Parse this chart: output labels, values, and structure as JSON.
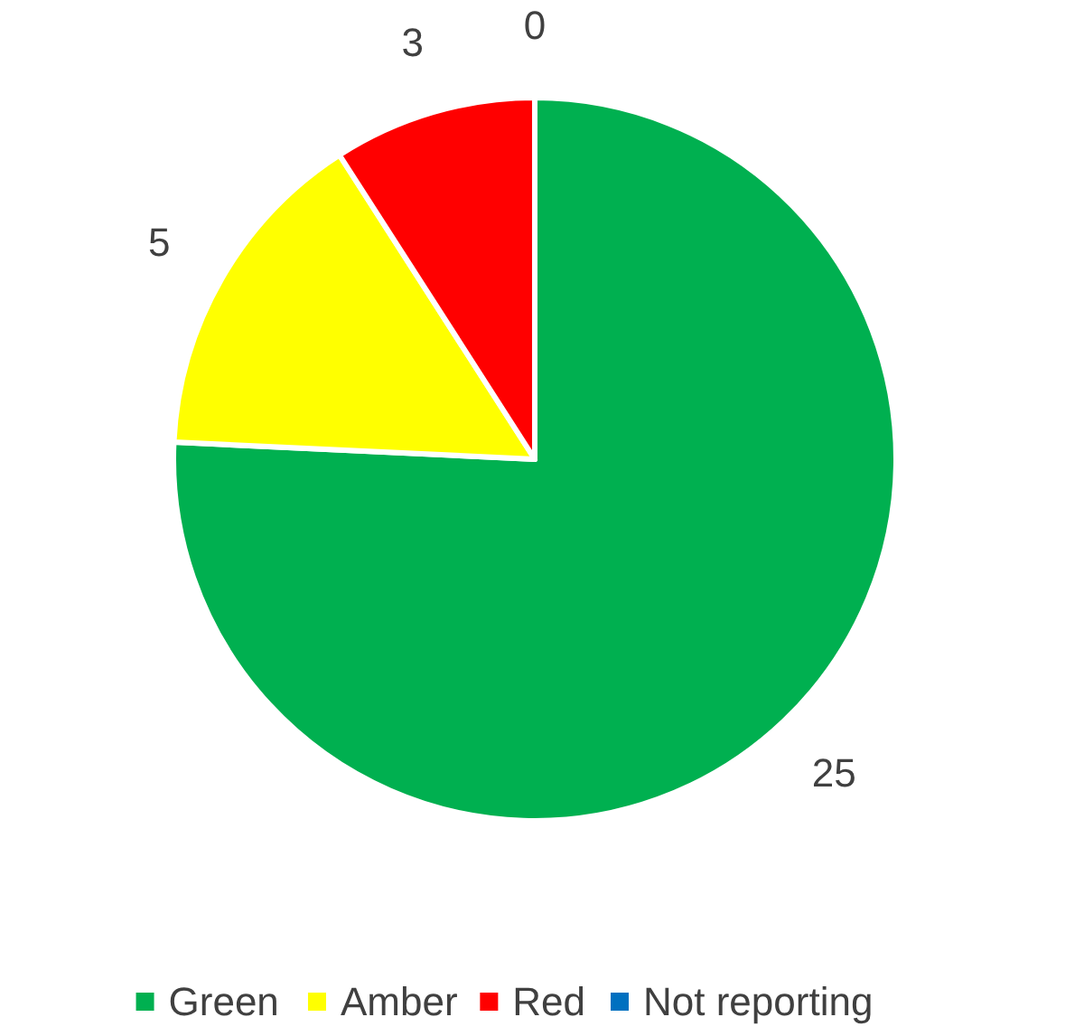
{
  "chart_data": {
    "type": "pie",
    "categories": [
      "Green",
      "Amber",
      "Red",
      "Not reporting"
    ],
    "values": [
      25,
      5,
      3,
      0
    ],
    "colors": [
      "#00b050",
      "#ffff00",
      "#ff0000",
      "#0070c0"
    ],
    "value_labels": [
      "25",
      "5",
      "3",
      "0"
    ],
    "legend": "bottom"
  }
}
